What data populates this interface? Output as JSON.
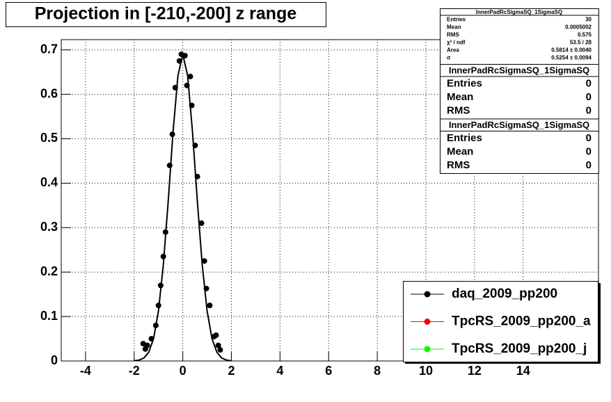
{
  "chart_data": {
    "type": "scatter",
    "title": "Projection in [-210,-200] z range",
    "xlim": [
      -5,
      17.1
    ],
    "ylim": [
      0,
      0.723
    ],
    "xticks": [
      -4,
      -2,
      0,
      2,
      4,
      6,
      8,
      10,
      12,
      14
    ],
    "yticks": [
      0,
      0.1,
      0.2,
      0.3,
      0.4,
      0.5,
      0.6,
      0.7
    ],
    "grid": true,
    "legend_position": "bottom-right",
    "series": [
      {
        "name": "daq_2009_pp200",
        "color": "#000000",
        "x": [
          -1.63,
          -1.54,
          -1.46,
          -1.29,
          -1.11,
          -1.0,
          -0.91,
          -0.8,
          -0.71,
          -0.54,
          -0.43,
          -0.31,
          -0.14,
          -0.06,
          0.09,
          0.17,
          0.31,
          0.37,
          0.51,
          0.6,
          0.77,
          0.89,
          0.97,
          1.11,
          1.29,
          1.37,
          1.46,
          1.54
        ],
        "values": [
          0.039,
          0.027,
          0.035,
          0.05,
          0.08,
          0.125,
          0.17,
          0.235,
          0.29,
          0.44,
          0.51,
          0.615,
          0.675,
          0.69,
          0.687,
          0.62,
          0.64,
          0.575,
          0.485,
          0.415,
          0.31,
          0.225,
          0.163,
          0.125,
          0.055,
          0.058,
          0.035,
          0.025
        ]
      },
      {
        "name": "TpcRS_2009_pp200_a",
        "color": "#ff0000",
        "x": [],
        "values": []
      },
      {
        "name": "TpcRS_2009_pp200_j",
        "color": "#00ff00",
        "x": [],
        "values": []
      }
    ],
    "fit": {
      "color": "#000000",
      "x": [
        -2.0,
        -1.8,
        -1.6,
        -1.4,
        -1.2,
        -1.0,
        -0.8,
        -0.6,
        -0.4,
        -0.2,
        0,
        0.2,
        0.4,
        0.6,
        0.8,
        1.0,
        1.2,
        1.4,
        1.6,
        1.8,
        2.0
      ],
      "values": [
        0.0005,
        0.002,
        0.0066,
        0.0197,
        0.0506,
        0.1125,
        0.216,
        0.359,
        0.516,
        0.642,
        0.69,
        0.642,
        0.516,
        0.359,
        0.216,
        0.1125,
        0.0506,
        0.0197,
        0.0066,
        0.002,
        0.0005
      ]
    },
    "stats_boxes": [
      {
        "title": "InnerPadRcSigmaSQ_1SigmaSQ",
        "rows": [
          [
            "Entries",
            "30"
          ],
          [
            "Mean",
            "0.0005002"
          ],
          [
            "RMS",
            "0.575"
          ],
          [
            "χ² / ndf",
            "53.5 / 28"
          ],
          [
            "Area",
            "0.5814 ± 0.0040"
          ],
          [
            "σ",
            "0.5254 ± 0.0094"
          ]
        ]
      },
      {
        "title": "InnerPadRcSigmaSQ_1SigmaSQ",
        "rows": [
          [
            "Entries",
            "0"
          ],
          [
            "Mean",
            "0"
          ],
          [
            "RMS",
            "0"
          ]
        ]
      },
      {
        "title": "InnerPadRcSigmaSQ_1SigmaSQ",
        "rows": [
          [
            "Entries",
            "0"
          ],
          [
            "Mean",
            "0"
          ],
          [
            "RMS",
            "0"
          ]
        ]
      }
    ]
  }
}
